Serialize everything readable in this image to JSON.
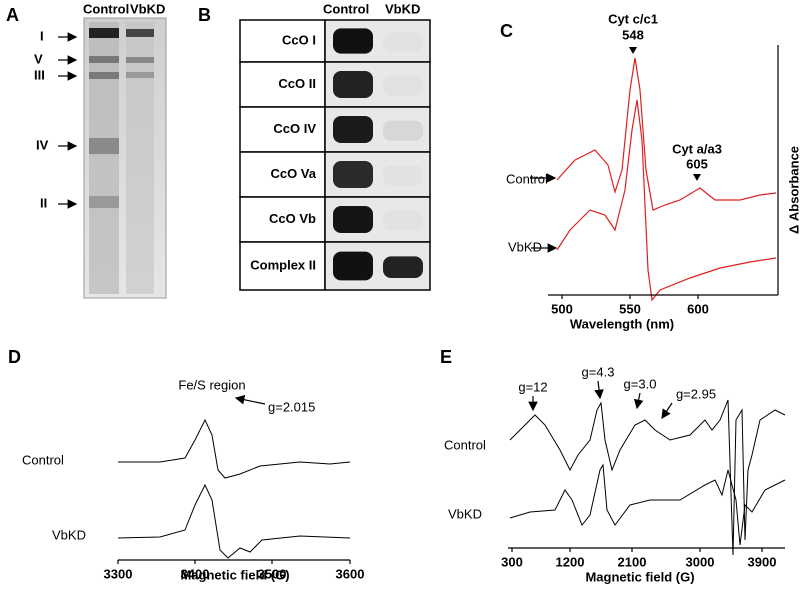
{
  "panel_a": {
    "label": "A",
    "headers": [
      "Control",
      "VbKD"
    ],
    "bands": [
      "I",
      "V",
      "III",
      "IV",
      "II"
    ]
  },
  "panel_b": {
    "label": "B",
    "headers": [
      "Control",
      "VbKD"
    ],
    "rows": [
      "CcO I",
      "CcO II",
      "CcO IV",
      "CcO Va",
      "CcO Vb",
      "Complex II"
    ]
  },
  "panel_c": {
    "label": "C",
    "peak1_name": "Cyt c/c1",
    "peak1_value": "548",
    "peak2_name": "Cyt a/a3",
    "peak2_value": "605",
    "samples": [
      "Control",
      "VbKD"
    ],
    "x_label": "Wavelength  (nm)",
    "y_label": "Δ Absorbance",
    "x_ticks": [
      "500",
      "550",
      "600"
    ]
  },
  "panel_d": {
    "label": "D",
    "subtitle": "Fe/S region",
    "annotation": "g=2.015",
    "samples": [
      "Control",
      "VbKD"
    ],
    "x_label": "Magnetic field (G)",
    "x_ticks": [
      "3300",
      "3400",
      "3500",
      "3600"
    ]
  },
  "panel_e": {
    "label": "E",
    "annotations": [
      "g=12",
      "g=4.3",
      "g=3.0",
      "g=2.95"
    ],
    "samples": [
      "Control",
      "VbKD"
    ],
    "x_label": "Magnetic field (G)",
    "x_ticks": [
      "300",
      "1200",
      "2100",
      "3000",
      "3900"
    ]
  }
}
